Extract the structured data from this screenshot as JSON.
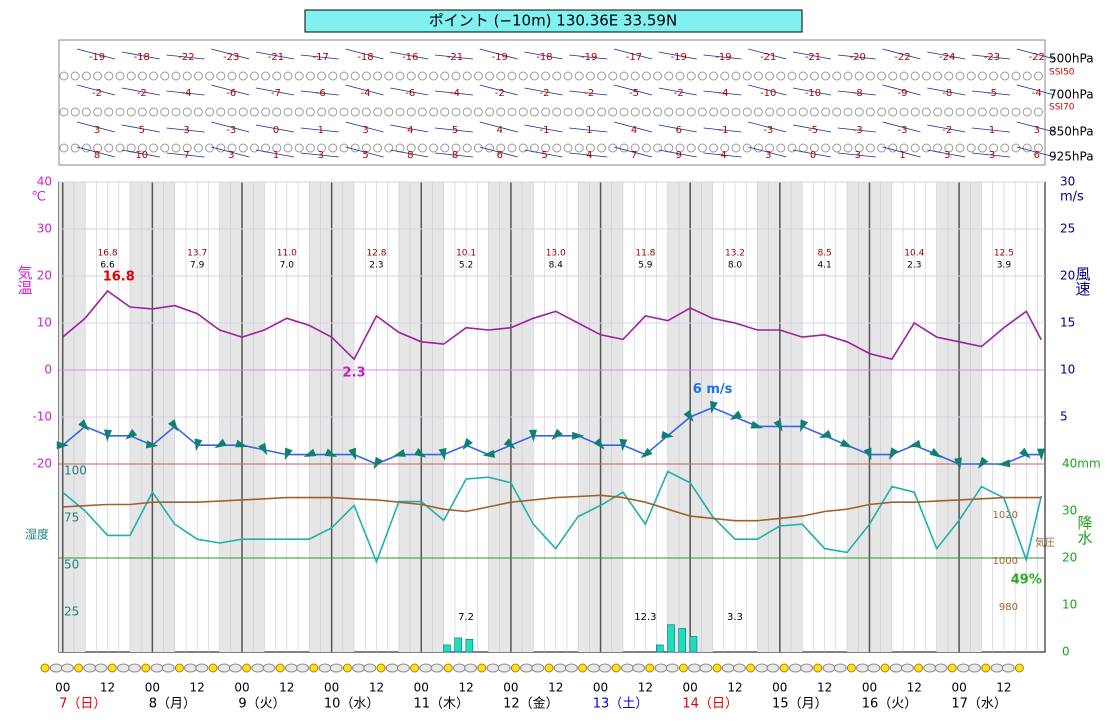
{
  "chart_data": {
    "type": "line",
    "title": "ポイント (−10m)  130.36E  33.59N",
    "xlim": [
      -1,
      263
    ],
    "xgrid_minor": 3,
    "xticks": [
      {
        "value": 0,
        "label": "00"
      },
      {
        "value": 12,
        "label": "12"
      },
      {
        "value": 24,
        "label": "00"
      },
      {
        "value": 36,
        "label": "12"
      },
      {
        "value": 48,
        "label": "00"
      },
      {
        "value": 60,
        "label": "12"
      },
      {
        "value": 72,
        "label": "00"
      },
      {
        "value": 84,
        "label": "12"
      },
      {
        "value": 96,
        "label": "00"
      },
      {
        "value": 108,
        "label": "12"
      },
      {
        "value": 120,
        "label": "00"
      },
      {
        "value": 132,
        "label": "12"
      },
      {
        "value": 144,
        "label": "00"
      },
      {
        "value": 156,
        "label": "12"
      },
      {
        "value": 168,
        "label": "00"
      },
      {
        "value": 180,
        "label": "12"
      },
      {
        "value": 192,
        "label": "00"
      },
      {
        "value": 204,
        "label": "12"
      },
      {
        "value": 216,
        "label": "00"
      },
      {
        "value": 228,
        "label": "12"
      },
      {
        "value": 240,
        "label": "00"
      },
      {
        "value": 252,
        "label": "12"
      }
    ],
    "day_labels": [
      "7（日）",
      "8（月）",
      "9（火）",
      "10（水）",
      "11（木）",
      "12（金）",
      "13（土）",
      "14（日）",
      "15（月）",
      "16（火）",
      "17（水）"
    ],
    "day_label_colors": [
      "#e00000",
      "#000000",
      "#000000",
      "#000000",
      "#000000",
      "#000000",
      "#0000e0",
      "#e00000",
      "#000000",
      "#000000",
      "#000000"
    ],
    "ylabel": "気温",
    "yunit": "℃",
    "ylim": [
      -60,
      40
    ],
    "yticks": [
      40,
      30,
      20,
      10,
      0,
      -10,
      -20
    ],
    "ytick_line_colors": [
      "#d8d0e8",
      "#d8d0e8",
      "#d8d0e8",
      "#d8d0e8",
      "#e088e0",
      "#d8d0e8",
      "#c06060"
    ],
    "y2label": "風速",
    "y2unit": "m/s",
    "y2lim": [
      -20,
      30
    ],
    "y2ticks": [
      30,
      25,
      20,
      15,
      10,
      5
    ],
    "humidity_axis": {
      "label": "湿度",
      "lim": [
        0,
        250
      ],
      "ticks": [
        100,
        75,
        50,
        25
      ],
      "line_colors": [
        null,
        null,
        "#20a020",
        null
      ]
    },
    "pressure_axis": {
      "label": "気圧",
      "lim": [
        957,
        1161
      ],
      "ticks": [
        1020,
        1000,
        980
      ]
    },
    "precip_axis": {
      "label": "降水",
      "lim": [
        0,
        100
      ],
      "ticks": [
        {
          "value": 40,
          "label": "40mm"
        },
        30,
        20,
        10,
        0
      ]
    },
    "x": [
      0,
      6,
      12,
      18,
      24,
      30,
      36,
      42,
      48,
      54,
      60,
      66,
      72,
      78,
      84,
      90,
      96,
      102,
      108,
      114,
      120,
      126,
      132,
      138,
      144,
      150,
      156,
      162,
      168,
      174,
      180,
      186,
      192,
      198,
      204,
      210,
      216,
      222,
      228,
      234,
      240,
      246,
      252,
      258,
      262
    ],
    "series": [
      {
        "name": "気温",
        "axis": "y",
        "color": "#a020a0",
        "values": [
          7,
          11,
          16.8,
          13.4,
          13,
          13.7,
          12,
          8.5,
          7,
          8.5,
          11,
          9.5,
          7,
          2.3,
          11.5,
          8,
          6,
          5.5,
          9,
          8.5,
          9,
          11,
          12.5,
          10,
          7.5,
          6.5,
          11.5,
          10.5,
          13.2,
          11,
          10,
          8.5,
          8.5,
          7,
          7.5,
          6,
          3.5,
          2.3,
          10,
          7,
          6,
          5,
          9,
          12.5,
          6.4
        ]
      },
      {
        "name": "風速",
        "axis": "y2",
        "color": "#3366ee",
        "values": [
          2,
          4,
          3,
          3,
          2,
          4,
          2,
          2,
          2,
          1.5,
          1,
          1,
          1,
          1,
          0,
          1,
          1,
          1,
          2,
          1,
          2,
          3,
          3,
          3,
          2,
          2,
          1,
          3,
          5,
          6,
          5,
          4,
          4,
          4,
          3,
          2,
          1,
          1,
          2,
          1,
          0,
          0,
          0,
          1,
          1
        ]
      },
      {
        "name": "湿度",
        "axis": "humidity",
        "color": "#20b0b0",
        "values": [
          85,
          75,
          62,
          62,
          85,
          68,
          60,
          58,
          60,
          60,
          60,
          60,
          66,
          78,
          48,
          80,
          80,
          70,
          92,
          93,
          90,
          68,
          55,
          72,
          78,
          85,
          68,
          96,
          90,
          72,
          60,
          60,
          67,
          68,
          55,
          53,
          68,
          88,
          85,
          55,
          70,
          88,
          82,
          49,
          83
        ]
      },
      {
        "name": "気圧",
        "axis": "pressure",
        "color": "#a0622d",
        "values": [
          1020,
          1020.5,
          1021,
          1021,
          1022,
          1022,
          1022,
          1022.5,
          1023,
          1023.5,
          1024,
          1024,
          1024,
          1023.5,
          1023,
          1022,
          1021,
          1019,
          1018,
          1020,
          1022,
          1023,
          1024,
          1024.5,
          1025,
          1024,
          1022,
          1019,
          1016,
          1015,
          1014,
          1014,
          1015,
          1016,
          1018,
          1019,
          1021,
          1022,
          1022,
          1022.5,
          1023,
          1023.5,
          1024,
          1024,
          1024
        ]
      }
    ],
    "precip": {
      "color": "#20e0b0",
      "x": [
        103,
        106,
        109,
        160,
        163,
        166,
        169
      ],
      "values": [
        1.5,
        3,
        2.7,
        1.5,
        5.8,
        5,
        3.3
      ]
    },
    "precip_totals": [
      {
        "x": 108,
        "value": 7.2
      },
      {
        "x": 156,
        "value": 12.3
      },
      {
        "x": 180,
        "value": 3.3
      }
    ],
    "daily_max": [
      "16.8",
      "13.7",
      "11.0",
      "12.8",
      "10.1",
      "13.0",
      "11.8",
      "13.2",
      "8.5",
      "10.4",
      "12.5"
    ],
    "daily_min": [
      "6.6",
      "7.9",
      "7.0",
      "2.3",
      "5.2",
      "8.4",
      "5.9",
      "8.0",
      "4.1",
      "2.3",
      "3.9"
    ],
    "annotations": [
      {
        "text": "16.8",
        "x": 15,
        "y": 16.8,
        "axis": "y",
        "color": "#e00000",
        "dy": -14
      },
      {
        "text": "2.3",
        "x": 78,
        "y": 2.3,
        "axis": "y",
        "color": "#c020c0",
        "dy": 14
      },
      {
        "text": "6 m/s",
        "x": 174,
        "y": 6,
        "axis": "y2",
        "color": "#2070e0",
        "dy": -18
      },
      {
        "text": "49%",
        "x": 258,
        "y": 49,
        "axis": "humidity",
        "color": "#20b020",
        "dy": 20
      }
    ],
    "upper": {
      "levels": [
        {
          "name": "500hPa",
          "temps": [
            -19,
            -18,
            -22,
            -23,
            -21,
            -17,
            -18,
            -16,
            -21,
            -19,
            -18,
            -19,
            -17,
            -19,
            -19,
            -21,
            -21,
            -20,
            -22,
            -24,
            -23,
            -22
          ]
        },
        {
          "name": "700hPa",
          "temps": [
            -2,
            -2,
            -4,
            -6,
            -7,
            -6,
            -4,
            -6,
            -4,
            -2,
            -2,
            -2,
            -5,
            -2,
            -4,
            -10,
            -10,
            -8,
            -9,
            -8,
            -5,
            -4
          ]
        },
        {
          "name": "850hPa",
          "temps": [
            3,
            5,
            3,
            -3,
            0,
            1,
            3,
            4,
            5,
            4,
            -1,
            1,
            4,
            6,
            -1,
            -3,
            -5,
            -3,
            -3,
            -2,
            1,
            3
          ]
        },
        {
          "name": "925hPa",
          "temps": [
            8,
            10,
            7,
            3,
            1,
            3,
            5,
            8,
            8,
            6,
            5,
            4,
            7,
            9,
            4,
            3,
            0,
            3,
            1,
            3,
            3,
            6
          ]
        }
      ],
      "indices": [
        "SSI50",
        "SSI70"
      ]
    }
  }
}
